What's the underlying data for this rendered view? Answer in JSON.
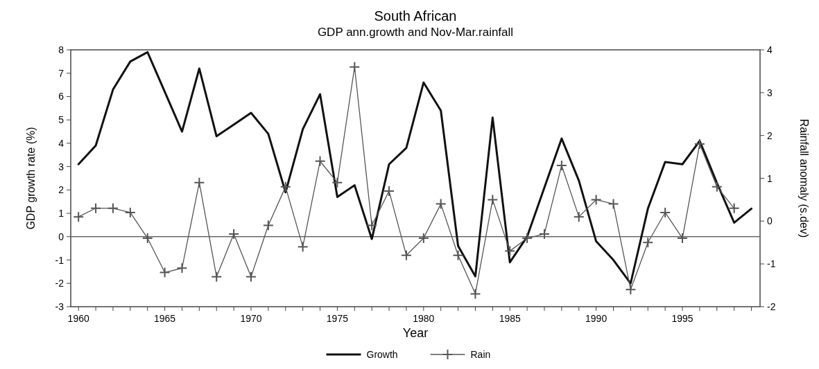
{
  "chart_data": {
    "type": "line",
    "title": "South African",
    "subtitle": "GDP ann.growth and Nov-Mar.rainfall",
    "xlabel": "Year",
    "ylabel": "GDP growth rate (%)",
    "y2label": "Rainfall anomaly (s.dev)",
    "x": [
      1960,
      1961,
      1962,
      1963,
      1964,
      1965,
      1966,
      1967,
      1968,
      1969,
      1970,
      1971,
      1972,
      1973,
      1974,
      1975,
      1976,
      1977,
      1978,
      1979,
      1980,
      1981,
      1982,
      1983,
      1984,
      1985,
      1986,
      1987,
      1988,
      1989,
      1990,
      1991,
      1992,
      1993,
      1994,
      1995,
      1996,
      1997,
      1998,
      1999
    ],
    "series": [
      {
        "name": "Growth",
        "color": "#111111",
        "marker": "none",
        "values": [
          3.1,
          3.9,
          6.3,
          7.5,
          7.9,
          6.2,
          4.5,
          7.2,
          4.3,
          4.8,
          5.3,
          4.4,
          1.9,
          4.6,
          6.1,
          1.7,
          2.2,
          -0.1,
          3.1,
          3.8,
          6.6,
          5.4,
          -0.4,
          -1.7,
          5.1,
          -1.1,
          0.0,
          2.1,
          4.2,
          2.4,
          -0.2,
          -1.0,
          -2.0,
          1.2,
          3.2,
          3.1,
          4.1,
          2.3,
          0.6,
          1.2
        ]
      },
      {
        "name": "Rain",
        "color": "#555555",
        "axis": "y2",
        "marker": "cross",
        "values": [
          0.1,
          0.3,
          0.3,
          0.2,
          -0.4,
          -1.2,
          -1.1,
          0.9,
          -1.3,
          -0.3,
          -1.3,
          -0.1,
          0.8,
          -0.6,
          1.4,
          0.9,
          3.6,
          -0.1,
          0.7,
          -0.8,
          -0.4,
          0.4,
          -0.8,
          -1.7,
          0.5,
          -0.7,
          -0.4,
          -0.3,
          1.3,
          0.1,
          0.5,
          0.4,
          -1.6,
          -0.5,
          0.2,
          -0.4,
          1.8,
          0.8,
          0.3,
          null
        ]
      }
    ],
    "xlim": [
      1959.55,
      1999.5
    ],
    "xticks": [
      1960,
      {
        "value": 1961,
        "label": null
      },
      {
        "value": 1962,
        "label": null
      },
      {
        "value": 1963,
        "label": null
      },
      {
        "value": 1964,
        "label": null
      },
      1965,
      {
        "value": 1966,
        "label": null
      },
      {
        "value": 1967,
        "label": null
      },
      {
        "value": 1968,
        "label": null
      },
      {
        "value": 1969,
        "label": null
      },
      1970,
      {
        "value": 1971,
        "label": null
      },
      {
        "value": 1972,
        "label": null
      },
      {
        "value": 1973,
        "label": null
      },
      {
        "value": 1974,
        "label": null
      },
      1975,
      {
        "value": 1976,
        "label": null
      },
      {
        "value": 1977,
        "label": null
      },
      {
        "value": 1978,
        "label": null
      },
      {
        "value": 1979,
        "label": null
      },
      1980,
      {
        "value": 1981,
        "label": null
      },
      {
        "value": 1982,
        "label": null
      },
      {
        "value": 1983,
        "label": null
      },
      {
        "value": 1984,
        "label": null
      },
      1985,
      {
        "value": 1986,
        "label": null
      },
      {
        "value": 1987,
        "label": null
      },
      {
        "value": 1988,
        "label": null
      },
      {
        "value": 1989,
        "label": null
      },
      1990,
      {
        "value": 1991,
        "label": null
      },
      {
        "value": 1992,
        "label": null
      },
      {
        "value": 1993,
        "label": null
      },
      {
        "value": 1994,
        "label": null
      },
      1995,
      {
        "value": 1996,
        "label": null
      },
      {
        "value": 1997,
        "label": null
      },
      {
        "value": 1998,
        "label": null
      },
      {
        "value": 1999,
        "label": null
      }
    ],
    "ylim": [
      -3,
      8
    ],
    "yticks": [
      -3,
      -2,
      -1,
      0,
      1,
      2,
      3,
      4,
      5,
      6,
      7,
      8
    ],
    "y2lim": [
      -2,
      4
    ],
    "y2ticks": [
      -2,
      -1,
      0,
      1,
      2,
      3,
      4
    ],
    "ref_lines": [
      {
        "axis": "y",
        "value": 0,
        "color": "#666666"
      }
    ],
    "grid": false,
    "legend": "bottom",
    "line_style": "solid"
  }
}
